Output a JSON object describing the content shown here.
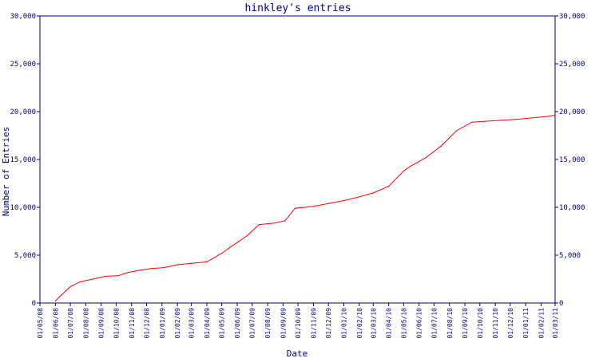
{
  "chart_data": {
    "type": "line",
    "title": "hinkley's entries",
    "xlabel": "Date",
    "ylabel": "Number of Entries",
    "ylim": [
      0,
      30000
    ],
    "y_ticks": [
      0,
      5000,
      10000,
      15000,
      20000,
      25000,
      30000
    ],
    "y_tick_labels": [
      "0",
      "5,000",
      "10,000",
      "15,000",
      "20,000",
      "25,000",
      "30,000"
    ],
    "right_axis": true,
    "grid": false,
    "x_tick_labels": [
      "01/05/08",
      "01/06/08",
      "01/07/08",
      "01/08/08",
      "01/09/08",
      "01/10/08",
      "01/11/08",
      "01/12/08",
      "01/01/09",
      "01/02/09",
      "01/03/09",
      "01/04/09",
      "01/05/09",
      "01/06/09",
      "01/07/09",
      "01/08/09",
      "01/09/09",
      "01/10/09",
      "01/11/09",
      "01/12/09",
      "01/01/10",
      "01/02/10",
      "01/03/10",
      "01/04/10",
      "01/05/10",
      "01/06/10",
      "01/07/10",
      "01/08/10",
      "01/09/10",
      "01/10/10",
      "01/11/10",
      "01/12/10",
      "01/01/11",
      "01/02/11",
      "01/03/11"
    ],
    "series": [
      {
        "color": "#ff0000",
        "x": [
          "2008-06-01",
          "2008-06-10",
          "2008-07-01",
          "2008-07-20",
          "2008-08-15",
          "2008-09-10",
          "2008-10-05",
          "2008-10-25",
          "2008-11-15",
          "2008-12-10",
          "2009-01-05",
          "2009-02-01",
          "2009-03-01",
          "2009-04-01",
          "2009-05-01",
          "2009-05-20",
          "2009-06-20",
          "2009-07-15",
          "2009-08-15",
          "2009-09-05",
          "2009-09-25",
          "2009-10-15",
          "2009-11-01",
          "2009-12-01",
          "2010-01-01",
          "2010-02-01",
          "2010-03-01",
          "2010-04-01",
          "2010-05-01",
          "2010-05-15",
          "2010-06-15",
          "2010-07-15",
          "2010-08-15",
          "2010-09-15",
          "2010-10-15",
          "2010-11-15",
          "2010-12-15",
          "2011-01-15",
          "2011-02-15",
          "2011-03-01"
        ],
        "y": [
          200,
          700,
          1700,
          2200,
          2500,
          2800,
          2850,
          3200,
          3400,
          3600,
          3700,
          4000,
          4150,
          4300,
          5200,
          5900,
          7000,
          8200,
          8350,
          8600,
          9900,
          10000,
          10100,
          10400,
          10700,
          11100,
          11500,
          12200,
          13800,
          14300,
          15200,
          16400,
          18000,
          18900,
          19000,
          19100,
          19200,
          19350,
          19500,
          19650
        ]
      }
    ]
  }
}
